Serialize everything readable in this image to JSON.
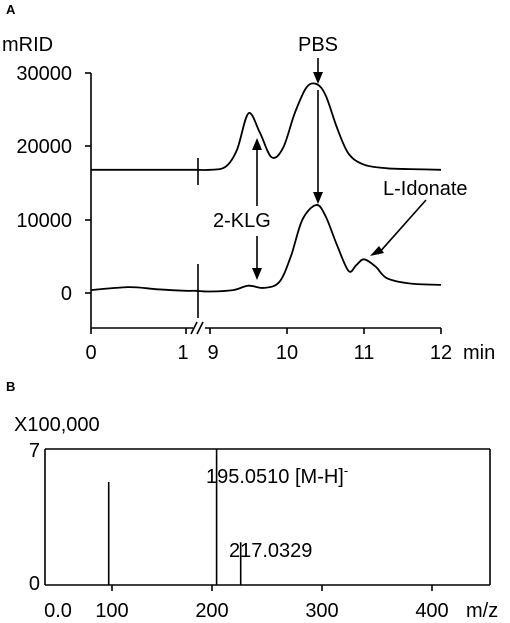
{
  "panels": {
    "a_label": "A",
    "b_label": "B"
  },
  "chart_data": [
    {
      "type": "line",
      "panel": "A",
      "title": "",
      "ylabel": "mRID",
      "xlabel": "min",
      "ylim": [
        -5000,
        30000
      ],
      "yticks": [
        "30000",
        "20000",
        "10000",
        "0"
      ],
      "ytick_values": [
        30000,
        20000,
        10000,
        0
      ],
      "xticks": [
        "0",
        "1",
        "9",
        "10",
        "11",
        "12"
      ],
      "axis_break": "between 1 and 9 min",
      "series": [
        {
          "x": [
            0,
            0.5,
            1,
            1.1,
            9,
            9.2,
            9.35,
            9.5,
            9.65,
            9.8,
            9.95,
            10.1,
            10.25,
            10.38,
            10.5,
            10.65,
            10.8,
            11,
            11.3,
            11.6,
            12
          ],
          "values": [
            16800,
            16800,
            16800,
            16800,
            16800,
            17200,
            19500,
            24500,
            21800,
            18500,
            19800,
            24500,
            28000,
            28500,
            27000,
            22500,
            19000,
            17500,
            17000,
            16900,
            16800
          ]
        },
        {
          "x": [
            0,
            0.4,
            0.7,
            1,
            1.1,
            9,
            9.3,
            9.5,
            9.7,
            9.9,
            10.05,
            10.2,
            10.38,
            10.5,
            10.65,
            10.8,
            10.9,
            11,
            11.15,
            11.3,
            11.6,
            12
          ],
          "values": [
            400,
            800,
            500,
            300,
            300,
            200,
            400,
            1000,
            700,
            1500,
            5000,
            10000,
            12000,
            10500,
            6500,
            3000,
            3800,
            4600,
            3600,
            2000,
            1300,
            1100
          ]
        }
      ],
      "annotations": [
        {
          "text": "PBS",
          "x": 10.38
        },
        {
          "text": "2-KLG",
          "x": 9.5
        },
        {
          "text": "L-Idonate",
          "x": 11
        }
      ]
    },
    {
      "type": "bar",
      "panel": "B",
      "title": "",
      "xlabel": "m/z",
      "scale_label": "X100,000",
      "ylim": [
        0,
        7
      ],
      "yticks": [
        "7",
        "0"
      ],
      "xticks": [
        "0.0",
        "100",
        "200",
        "300",
        "400"
      ],
      "peaks": [
        {
          "mz": 97,
          "value": 5.3,
          "label": ""
        },
        {
          "mz": 195.051,
          "value": 7.0,
          "label": "195.0510 [M-H]",
          "label_sup": "-"
        },
        {
          "mz": 217.0329,
          "value": 2.2,
          "label": "217.0329",
          "label_sup": ""
        }
      ]
    }
  ]
}
